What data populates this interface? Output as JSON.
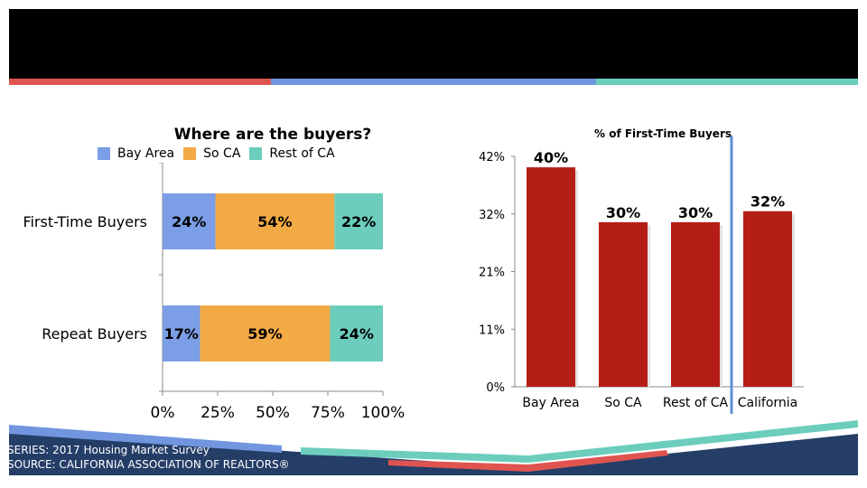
{
  "header": {
    "title": ""
  },
  "colors": {
    "bay_area": "#7b9ee6",
    "so_ca": "#f2aa45",
    "rest_ca": "#6ccdbd",
    "bar_red": "#b51e17",
    "stripe_red": "#e0544f",
    "stripe_blue": "#7196df",
    "stripe_teal": "#6ccdbd",
    "divider": "#5e8fd1",
    "footer_navy": "#253e68"
  },
  "chart_data": [
    {
      "type": "bar",
      "orientation": "horizontal",
      "stacked": true,
      "title": "Where are the buyers?",
      "categories": [
        "First-Time Buyers",
        "Repeat Buyers"
      ],
      "series": [
        {
          "name": "Bay Area",
          "values": [
            24,
            17
          ],
          "labels": [
            "24%",
            "17%"
          ]
        },
        {
          "name": "So CA",
          "values": [
            54,
            59
          ],
          "labels": [
            "54%",
            "59%"
          ]
        },
        {
          "name": "Rest of CA",
          "values": [
            22,
            24
          ],
          "labels": [
            "22%",
            "24%"
          ]
        }
      ],
      "x_ticks": [
        "0%",
        "25%",
        "50%",
        "75%",
        "100%"
      ],
      "xlim": [
        0,
        100
      ],
      "legend": "top"
    },
    {
      "type": "bar",
      "title": "% of First-Time Buyers",
      "categories": [
        "Bay Area",
        "So CA",
        "Rest of CA",
        "California"
      ],
      "values": [
        40,
        30,
        30,
        32
      ],
      "labels": [
        "40%",
        "30%",
        "30%",
        "32%"
      ],
      "y_ticks": [
        "0%",
        "11%",
        "21%",
        "32%",
        "42%"
      ],
      "ylim": [
        0,
        42
      ]
    }
  ],
  "footer": {
    "series_text": "SERIES: 2017 Housing Market Survey",
    "source_text": "SOURCE:  CALIFORNIA ASSOCIATION OF REALTORS®"
  }
}
